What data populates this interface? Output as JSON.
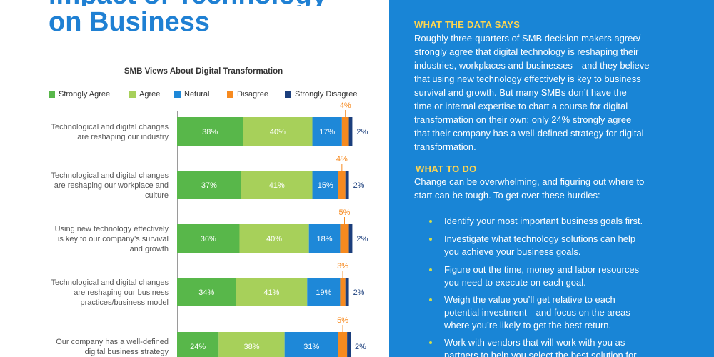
{
  "page": {
    "title_line1": "Impact of Technology",
    "title_line2": "on Business"
  },
  "chart_data": {
    "type": "bar",
    "orientation": "horizontal",
    "stacked": true,
    "title": "SMB Views About Digital Transformation",
    "unit": "%",
    "legend_position": "top",
    "categories": [
      "Technological and digital changes are reshaping our industry",
      "Technological and digital changes are reshaping our workplace and culture",
      "Using new technology effectively is key to our company’s survival and growth",
      "Technological and digital changes are reshaping our business practices/business model",
      "Our company has a well-defined digital business strategy"
    ],
    "series": [
      {
        "name": "Strongly Agree",
        "color": "#58b74a",
        "values": [
          38,
          37,
          36,
          34,
          24
        ]
      },
      {
        "name": "Agree",
        "color": "#a7d05a",
        "values": [
          40,
          41,
          40,
          41,
          38
        ]
      },
      {
        "name": "Netural",
        "color": "#1e88d8",
        "values": [
          17,
          15,
          18,
          19,
          31
        ]
      },
      {
        "name": "Disagree",
        "color": "#f78a1f",
        "values": [
          4,
          4,
          5,
          3,
          5
        ]
      },
      {
        "name": "Strongly Disagree",
        "color": "#1b3e7c",
        "values": [
          2,
          2,
          2,
          2,
          2
        ]
      }
    ]
  },
  "panel": {
    "data_says": {
      "heading": "WHAT THE DATA SAYS",
      "lines": [
        "Roughly three-quarters of SMB decision makers agree/",
        "strongly agree that digital technology is reshaping their",
        "industries, workplaces and businesses—and they believe",
        "that using new technology effectively is key to business",
        "survival and growth. But many SMBs don’t have the",
        "time or internal expertise to chart a course for digital",
        "transformation on their own: only 24% strongly agree",
        "that their company has a well-defined strategy for digital",
        "transformation."
      ]
    },
    "to_do": {
      "heading": "WHAT TO DO",
      "intro_lines": [
        "Change can be overwhelming, and figuring out where to",
        "start can be tough. To get over these hurdles:"
      ],
      "bullets": [
        [
          "Identify your most important business goals first."
        ],
        [
          "Investigate what technology solutions can help",
          "you achieve your business goals."
        ],
        [
          "Figure out the time, money and labor resources",
          "you need to execute on each goal."
        ],
        [
          "Weigh the value you’ll get relative to each",
          "potential investment—and focus on the areas",
          "where you’re likely to get the best return."
        ],
        [
          "Work with vendors that will work with you as",
          "partners to help you select the best solution for"
        ]
      ]
    }
  },
  "colors": {
    "panel_background": "#1985d6",
    "title": "#1f80d3",
    "heading_accent": "#ffd54f",
    "bullet": "#d4de4a"
  }
}
